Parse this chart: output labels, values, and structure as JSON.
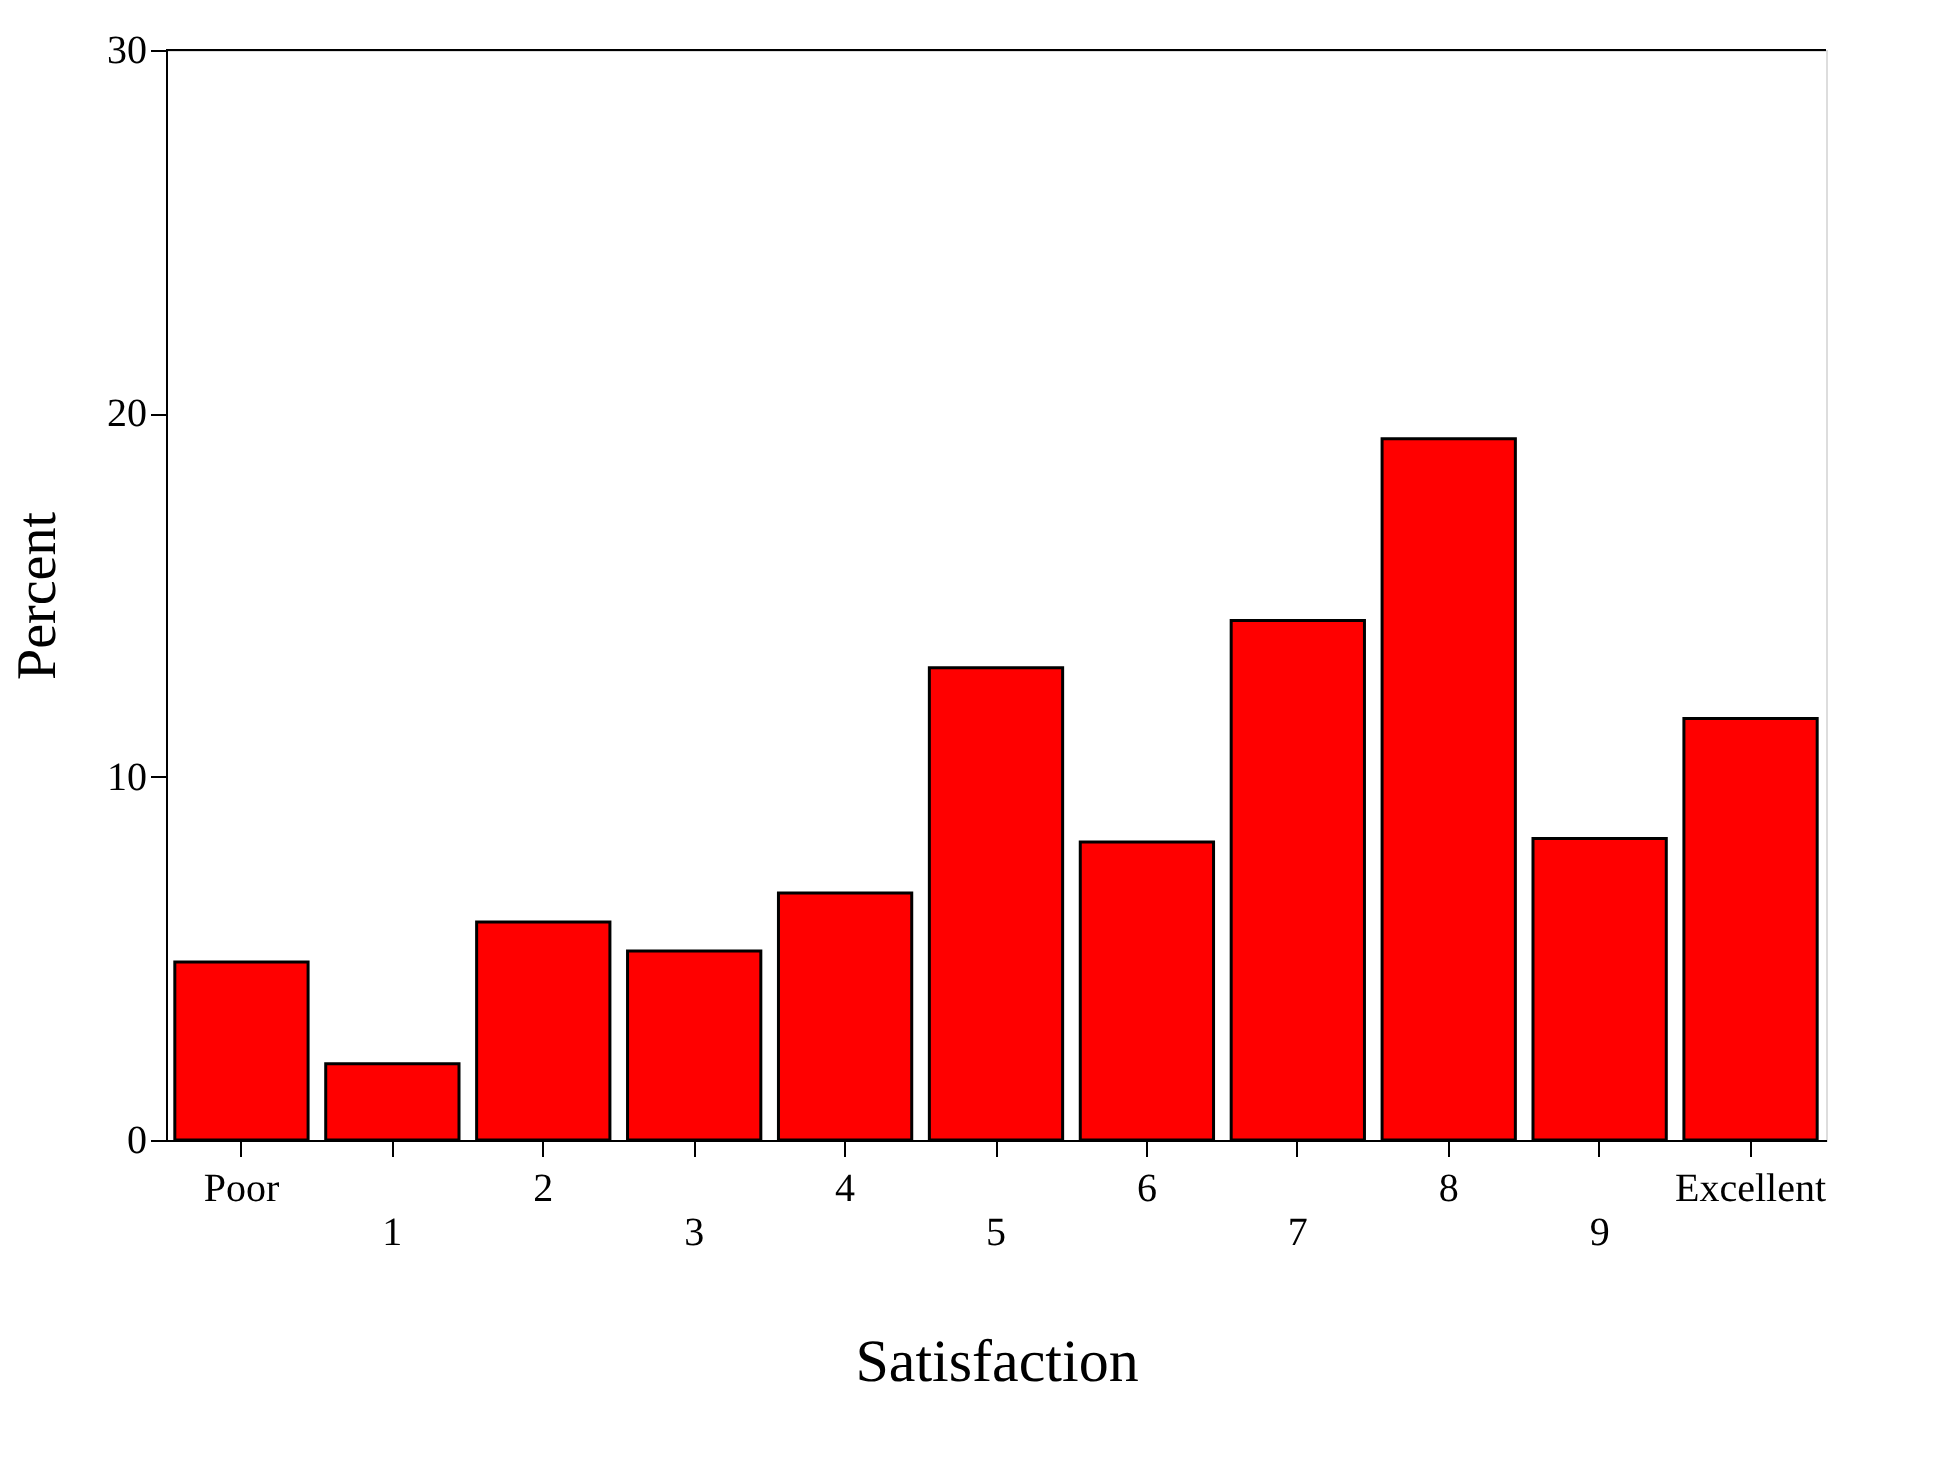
{
  "chart_data": {
    "type": "bar",
    "xlabel": "Satisfaction",
    "ylabel": "Percent",
    "categories": [
      "Poor",
      "1",
      "2",
      "3",
      "4",
      "5",
      "6",
      "7",
      "8",
      "9",
      "Excellent"
    ],
    "values": [
      4.9,
      2.1,
      6.0,
      5.2,
      6.8,
      13.0,
      8.2,
      14.3,
      19.3,
      8.3,
      11.6
    ],
    "color": "#ff0000",
    "ylim": [
      0,
      30
    ],
    "yticks": [
      0,
      10,
      20,
      30
    ],
    "grid": false
  }
}
